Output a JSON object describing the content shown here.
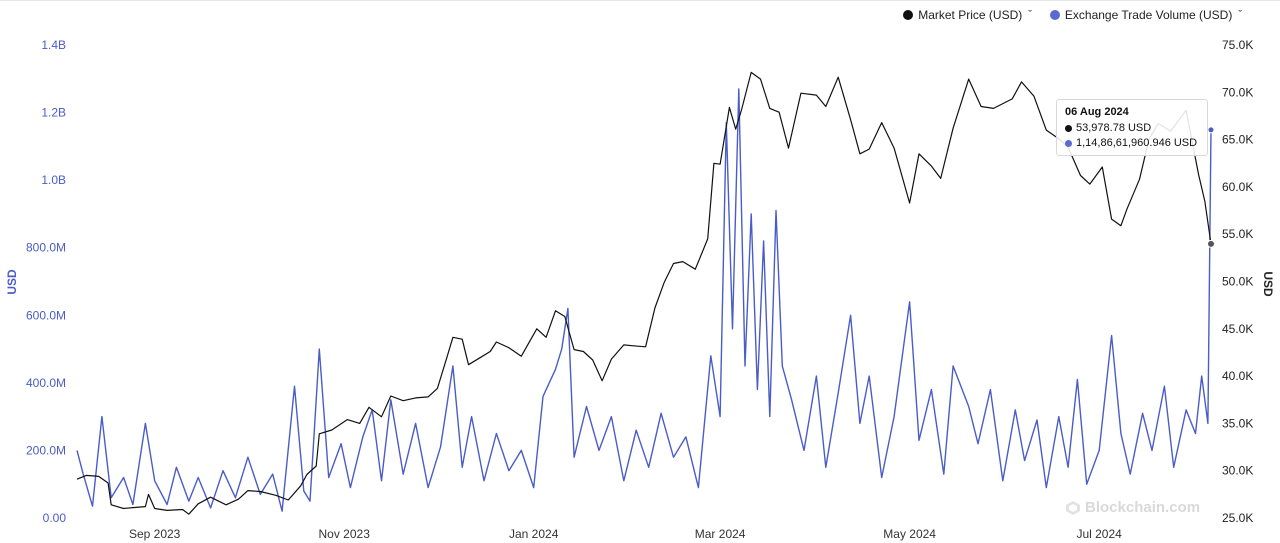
{
  "legend": {
    "market_label": "Market Price (USD)",
    "volume_label": "Exchange Trade Volume (USD)",
    "market_color": "#111111",
    "volume_color": "#4a5cc8",
    "chevron": "ˇ"
  },
  "tooltip": {
    "date": "06 Aug 2024",
    "market_value": "53,978.78 USD",
    "volume_value": "1,14,86,61,960.946 USD"
  },
  "watermark": "Blockchain.com",
  "chart_data": {
    "type": "line",
    "x_range": [
      "2023-08-07",
      "2024-08-06"
    ],
    "x_ticks": [
      {
        "label": "Sep 2023",
        "date": "2023-09-01"
      },
      {
        "label": "Nov 2023",
        "date": "2023-11-01"
      },
      {
        "label": "Jan 2024",
        "date": "2024-01-01"
      },
      {
        "label": "Mar 2024",
        "date": "2024-03-01"
      },
      {
        "label": "May 2024",
        "date": "2024-05-01"
      },
      {
        "label": "Jul 2024",
        "date": "2024-07-01"
      }
    ],
    "y_left": {
      "title": "USD",
      "range": [
        0,
        1400000000
      ],
      "ticks": [
        {
          "value": 0,
          "label": "0.00"
        },
        {
          "value": 200000000,
          "label": "200.0M"
        },
        {
          "value": 400000000,
          "label": "400.0M"
        },
        {
          "value": 600000000,
          "label": "600.0M"
        },
        {
          "value": 800000000,
          "label": "800.0M"
        },
        {
          "value": 1000000000,
          "label": "1.0B"
        },
        {
          "value": 1200000000,
          "label": "1.2B"
        },
        {
          "value": 1400000000,
          "label": "1.4B"
        }
      ]
    },
    "y_right": {
      "title": "USD",
      "range": [
        25000,
        75000
      ],
      "ticks": [
        {
          "value": 25000,
          "label": "25.0K"
        },
        {
          "value": 30000,
          "label": "30.0K"
        },
        {
          "value": 35000,
          "label": "35.0K"
        },
        {
          "value": 40000,
          "label": "40.0K"
        },
        {
          "value": 45000,
          "label": "45.0K"
        },
        {
          "value": 50000,
          "label": "50.0K"
        },
        {
          "value": 55000,
          "label": "55.0K"
        },
        {
          "value": 60000,
          "label": "60.0K"
        },
        {
          "value": 65000,
          "label": "65.0K"
        },
        {
          "value": 70000,
          "label": "70.0K"
        },
        {
          "value": 75000,
          "label": "75.0K"
        }
      ]
    },
    "grid": false,
    "legend_position": "top-right",
    "series": [
      {
        "name": "Market Price (USD)",
        "axis": "right",
        "color": "#111111",
        "points": [
          [
            "2023-08-07",
            29100
          ],
          [
            "2023-08-10",
            29500
          ],
          [
            "2023-08-14",
            29400
          ],
          [
            "2023-08-17",
            28700
          ],
          [
            "2023-08-18",
            26400
          ],
          [
            "2023-08-22",
            26000
          ],
          [
            "2023-08-25",
            26100
          ],
          [
            "2023-08-29",
            26200
          ],
          [
            "2023-08-30",
            27500
          ],
          [
            "2023-09-01",
            26000
          ],
          [
            "2023-09-05",
            25800
          ],
          [
            "2023-09-10",
            25900
          ],
          [
            "2023-09-12",
            25400
          ],
          [
            "2023-09-15",
            26500
          ],
          [
            "2023-09-19",
            27200
          ],
          [
            "2023-09-24",
            26400
          ],
          [
            "2023-09-28",
            27000
          ],
          [
            "2023-10-01",
            27900
          ],
          [
            "2023-10-05",
            27800
          ],
          [
            "2023-10-10",
            27400
          ],
          [
            "2023-10-14",
            26900
          ],
          [
            "2023-10-18",
            28400
          ],
          [
            "2023-10-20",
            29600
          ],
          [
            "2023-10-23",
            30500
          ],
          [
            "2023-10-24",
            33900
          ],
          [
            "2023-10-28",
            34300
          ],
          [
            "2023-11-02",
            35400
          ],
          [
            "2023-11-06",
            35000
          ],
          [
            "2023-11-09",
            36700
          ],
          [
            "2023-11-13",
            35700
          ],
          [
            "2023-11-16",
            37900
          ],
          [
            "2023-11-20",
            37400
          ],
          [
            "2023-11-24",
            37700
          ],
          [
            "2023-11-28",
            37800
          ],
          [
            "2023-12-01",
            38700
          ],
          [
            "2023-12-04",
            41900
          ],
          [
            "2023-12-06",
            44100
          ],
          [
            "2023-12-09",
            43900
          ],
          [
            "2023-12-11",
            41200
          ],
          [
            "2023-12-15",
            42000
          ],
          [
            "2023-12-18",
            42600
          ],
          [
            "2023-12-20",
            43600
          ],
          [
            "2023-12-24",
            43000
          ],
          [
            "2023-12-28",
            42100
          ],
          [
            "2024-01-02",
            45000
          ],
          [
            "2024-01-05",
            44100
          ],
          [
            "2024-01-08",
            46900
          ],
          [
            "2024-01-11",
            46300
          ],
          [
            "2024-01-14",
            42800
          ],
          [
            "2024-01-17",
            42600
          ],
          [
            "2024-01-20",
            41700
          ],
          [
            "2024-01-23",
            39500
          ],
          [
            "2024-01-26",
            41800
          ],
          [
            "2024-01-30",
            43300
          ],
          [
            "2024-02-02",
            43200
          ],
          [
            "2024-02-06",
            43100
          ],
          [
            "2024-02-09",
            47200
          ],
          [
            "2024-02-12",
            49900
          ],
          [
            "2024-02-15",
            51900
          ],
          [
            "2024-02-18",
            52100
          ],
          [
            "2024-02-22",
            51300
          ],
          [
            "2024-02-26",
            54500
          ],
          [
            "2024-02-28",
            62500
          ],
          [
            "2024-03-01",
            62400
          ],
          [
            "2024-03-04",
            68400
          ],
          [
            "2024-03-06",
            66100
          ],
          [
            "2024-03-08",
            68300
          ],
          [
            "2024-03-11",
            72100
          ],
          [
            "2024-03-14",
            71400
          ],
          [
            "2024-03-17",
            68300
          ],
          [
            "2024-03-20",
            67900
          ],
          [
            "2024-03-23",
            64100
          ],
          [
            "2024-03-27",
            69900
          ],
          [
            "2024-04-01",
            69700
          ],
          [
            "2024-04-04",
            68500
          ],
          [
            "2024-04-08",
            71600
          ],
          [
            "2024-04-12",
            67100
          ],
          [
            "2024-04-15",
            63500
          ],
          [
            "2024-04-18",
            64000
          ],
          [
            "2024-04-22",
            66800
          ],
          [
            "2024-04-26",
            64100
          ],
          [
            "2024-05-01",
            58300
          ],
          [
            "2024-05-04",
            63500
          ],
          [
            "2024-05-08",
            62200
          ],
          [
            "2024-05-11",
            60900
          ],
          [
            "2024-05-15",
            66200
          ],
          [
            "2024-05-20",
            71400
          ],
          [
            "2024-05-24",
            68500
          ],
          [
            "2024-05-28",
            68300
          ],
          [
            "2024-06-03",
            69300
          ],
          [
            "2024-06-06",
            71100
          ],
          [
            "2024-06-10",
            69600
          ],
          [
            "2024-06-14",
            66000
          ],
          [
            "2024-06-18",
            65100
          ],
          [
            "2024-06-21",
            64200
          ],
          [
            "2024-06-25",
            61200
          ],
          [
            "2024-06-28",
            60300
          ],
          [
            "2024-07-02",
            62100
          ],
          [
            "2024-07-05",
            56600
          ],
          [
            "2024-07-08",
            55900
          ],
          [
            "2024-07-10",
            57700
          ],
          [
            "2024-07-14",
            60800
          ],
          [
            "2024-07-17",
            65000
          ],
          [
            "2024-07-20",
            66700
          ],
          [
            "2024-07-24",
            65900
          ],
          [
            "2024-07-29",
            68100
          ],
          [
            "2024-08-02",
            61300
          ],
          [
            "2024-08-04",
            58500
          ],
          [
            "2024-08-06",
            53979
          ]
        ]
      },
      {
        "name": "Exchange Trade Volume (USD)",
        "axis": "left",
        "color": "#4a5cc8",
        "points": [
          [
            "2023-08-07",
            200000000
          ],
          [
            "2023-08-09",
            130000000
          ],
          [
            "2023-08-12",
            35000000
          ],
          [
            "2023-08-15",
            300000000
          ],
          [
            "2023-08-18",
            60000000
          ],
          [
            "2023-08-22",
            120000000
          ],
          [
            "2023-08-25",
            40000000
          ],
          [
            "2023-08-29",
            280000000
          ],
          [
            "2023-09-01",
            110000000
          ],
          [
            "2023-09-05",
            40000000
          ],
          [
            "2023-09-08",
            150000000
          ],
          [
            "2023-09-12",
            50000000
          ],
          [
            "2023-09-15",
            120000000
          ],
          [
            "2023-09-19",
            30000000
          ],
          [
            "2023-09-23",
            140000000
          ],
          [
            "2023-09-27",
            60000000
          ],
          [
            "2023-10-01",
            180000000
          ],
          [
            "2023-10-05",
            70000000
          ],
          [
            "2023-10-09",
            130000000
          ],
          [
            "2023-10-12",
            20000000
          ],
          [
            "2023-10-16",
            390000000
          ],
          [
            "2023-10-19",
            80000000
          ],
          [
            "2023-10-21",
            50000000
          ],
          [
            "2023-10-24",
            500000000
          ],
          [
            "2023-10-27",
            120000000
          ],
          [
            "2023-10-31",
            220000000
          ],
          [
            "2023-11-03",
            90000000
          ],
          [
            "2023-11-07",
            240000000
          ],
          [
            "2023-11-10",
            320000000
          ],
          [
            "2023-11-13",
            110000000
          ],
          [
            "2023-11-16",
            350000000
          ],
          [
            "2023-11-20",
            130000000
          ],
          [
            "2023-11-24",
            280000000
          ],
          [
            "2023-11-28",
            90000000
          ],
          [
            "2023-12-02",
            210000000
          ],
          [
            "2023-12-06",
            450000000
          ],
          [
            "2023-12-09",
            150000000
          ],
          [
            "2023-12-12",
            300000000
          ],
          [
            "2023-12-16",
            110000000
          ],
          [
            "2023-12-20",
            250000000
          ],
          [
            "2023-12-24",
            140000000
          ],
          [
            "2023-12-28",
            200000000
          ],
          [
            "2024-01-01",
            90000000
          ],
          [
            "2024-01-04",
            360000000
          ],
          [
            "2024-01-08",
            440000000
          ],
          [
            "2024-01-10",
            500000000
          ],
          [
            "2024-01-12",
            620000000
          ],
          [
            "2024-01-14",
            180000000
          ],
          [
            "2024-01-18",
            330000000
          ],
          [
            "2024-01-22",
            200000000
          ],
          [
            "2024-01-26",
            300000000
          ],
          [
            "2024-01-30",
            110000000
          ],
          [
            "2024-02-03",
            260000000
          ],
          [
            "2024-02-07",
            150000000
          ],
          [
            "2024-02-11",
            310000000
          ],
          [
            "2024-02-15",
            180000000
          ],
          [
            "2024-02-19",
            240000000
          ],
          [
            "2024-02-23",
            90000000
          ],
          [
            "2024-02-27",
            480000000
          ],
          [
            "2024-03-01",
            300000000
          ],
          [
            "2024-03-03",
            1170000000
          ],
          [
            "2024-03-05",
            560000000
          ],
          [
            "2024-03-07",
            1270000000
          ],
          [
            "2024-03-09",
            450000000
          ],
          [
            "2024-03-11",
            900000000
          ],
          [
            "2024-03-13",
            380000000
          ],
          [
            "2024-03-15",
            820000000
          ],
          [
            "2024-03-17",
            300000000
          ],
          [
            "2024-03-19",
            910000000
          ],
          [
            "2024-03-21",
            450000000
          ],
          [
            "2024-03-24",
            350000000
          ],
          [
            "2024-03-28",
            200000000
          ],
          [
            "2024-04-01",
            420000000
          ],
          [
            "2024-04-04",
            150000000
          ],
          [
            "2024-04-08",
            370000000
          ],
          [
            "2024-04-12",
            600000000
          ],
          [
            "2024-04-15",
            280000000
          ],
          [
            "2024-04-18",
            420000000
          ],
          [
            "2024-04-22",
            120000000
          ],
          [
            "2024-04-26",
            300000000
          ],
          [
            "2024-05-01",
            640000000
          ],
          [
            "2024-05-04",
            230000000
          ],
          [
            "2024-05-08",
            380000000
          ],
          [
            "2024-05-12",
            130000000
          ],
          [
            "2024-05-15",
            450000000
          ],
          [
            "2024-05-20",
            330000000
          ],
          [
            "2024-05-23",
            220000000
          ],
          [
            "2024-05-27",
            380000000
          ],
          [
            "2024-05-31",
            110000000
          ],
          [
            "2024-06-04",
            320000000
          ],
          [
            "2024-06-07",
            170000000
          ],
          [
            "2024-06-11",
            290000000
          ],
          [
            "2024-06-14",
            90000000
          ],
          [
            "2024-06-18",
            300000000
          ],
          [
            "2024-06-21",
            150000000
          ],
          [
            "2024-06-24",
            410000000
          ],
          [
            "2024-06-27",
            100000000
          ],
          [
            "2024-07-01",
            200000000
          ],
          [
            "2024-07-05",
            540000000
          ],
          [
            "2024-07-08",
            250000000
          ],
          [
            "2024-07-11",
            130000000
          ],
          [
            "2024-07-15",
            310000000
          ],
          [
            "2024-07-18",
            200000000
          ],
          [
            "2024-07-22",
            390000000
          ],
          [
            "2024-07-25",
            150000000
          ],
          [
            "2024-07-29",
            320000000
          ],
          [
            "2024-08-01",
            250000000
          ],
          [
            "2024-08-03",
            420000000
          ],
          [
            "2024-08-05",
            280000000
          ],
          [
            "2024-08-06",
            1148661961
          ]
        ]
      }
    ]
  }
}
